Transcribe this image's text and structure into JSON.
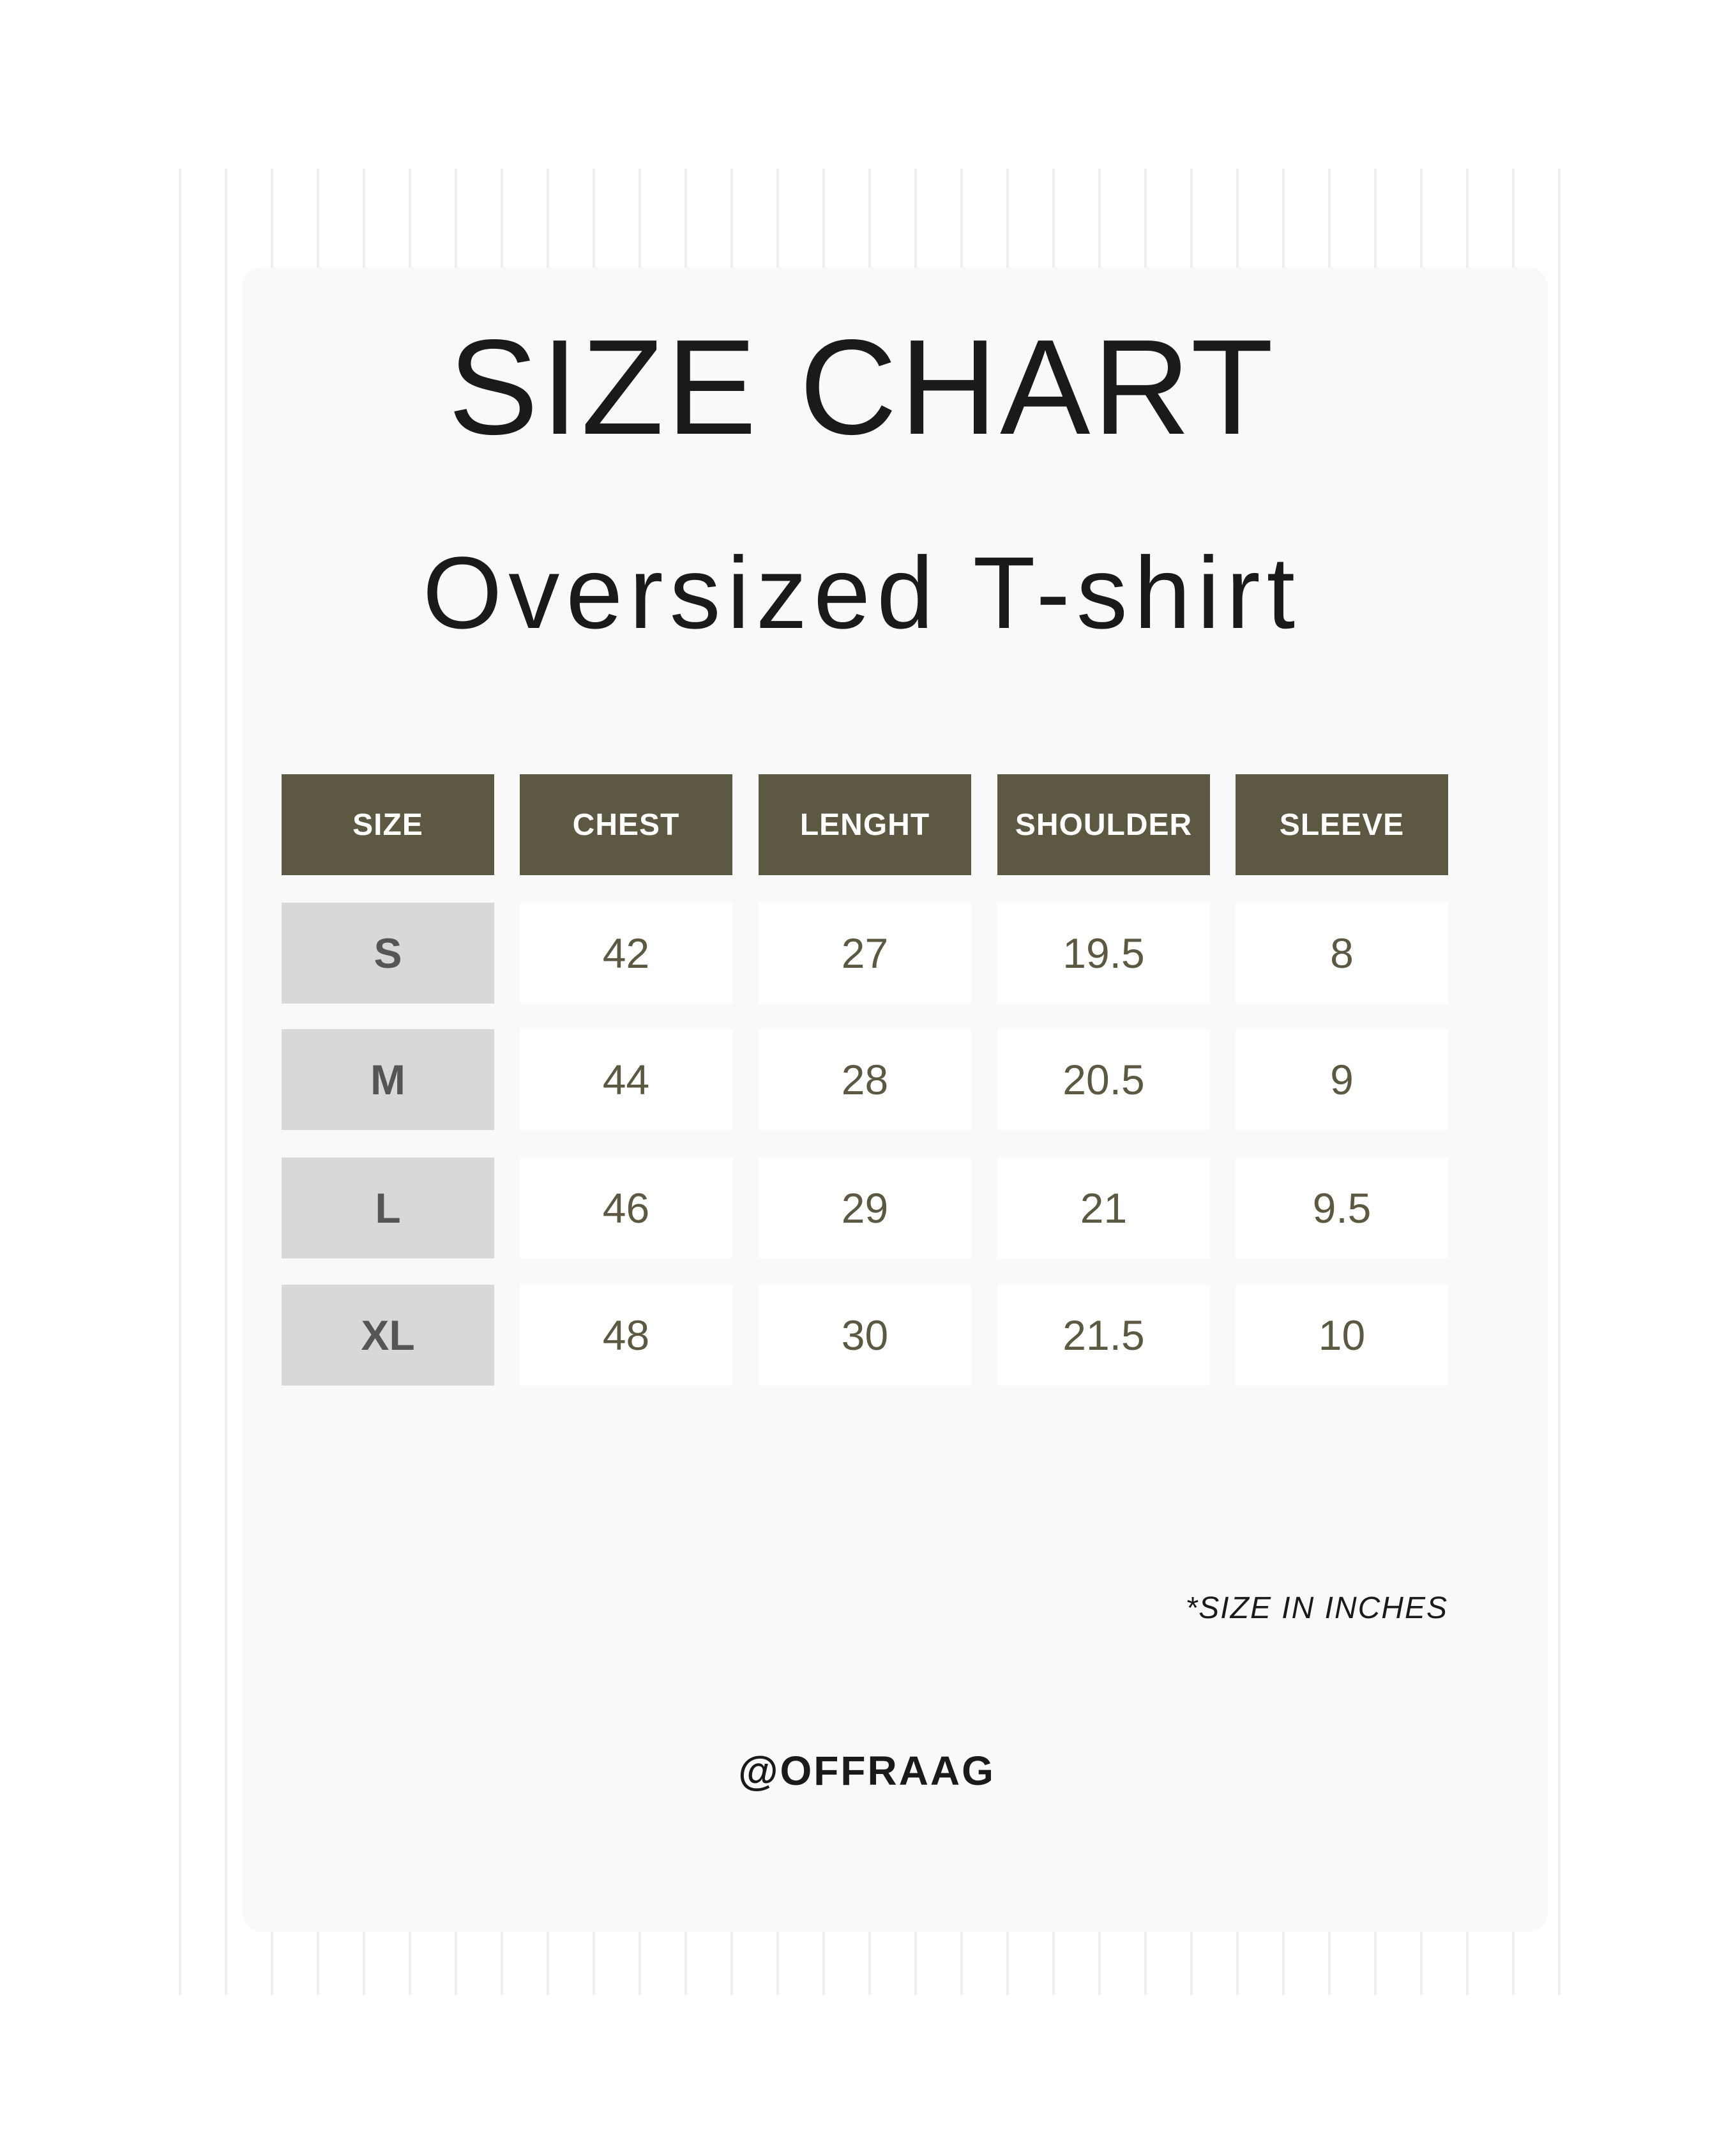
{
  "title": "SIZE CHART",
  "subtitle": "Oversized T-shirt",
  "colors": {
    "header_bg": "#5d5842",
    "size_cell_bg": "#d8d8d8",
    "value_text": "#5d5842"
  },
  "table": {
    "headers": [
      "SIZE",
      "CHEST",
      "LENGHT",
      "SHOULDER",
      "SLEEVE"
    ],
    "rows": [
      [
        "S",
        "42",
        "27",
        "19.5",
        "8"
      ],
      [
        "M",
        "44",
        "28",
        "20.5",
        "9"
      ],
      [
        "L",
        "46",
        "29",
        "21",
        "9.5"
      ],
      [
        "XL",
        "48",
        "30",
        "21.5",
        "10"
      ]
    ]
  },
  "note": "*SIZE IN INCHES",
  "handle": "@OFFRAAG"
}
